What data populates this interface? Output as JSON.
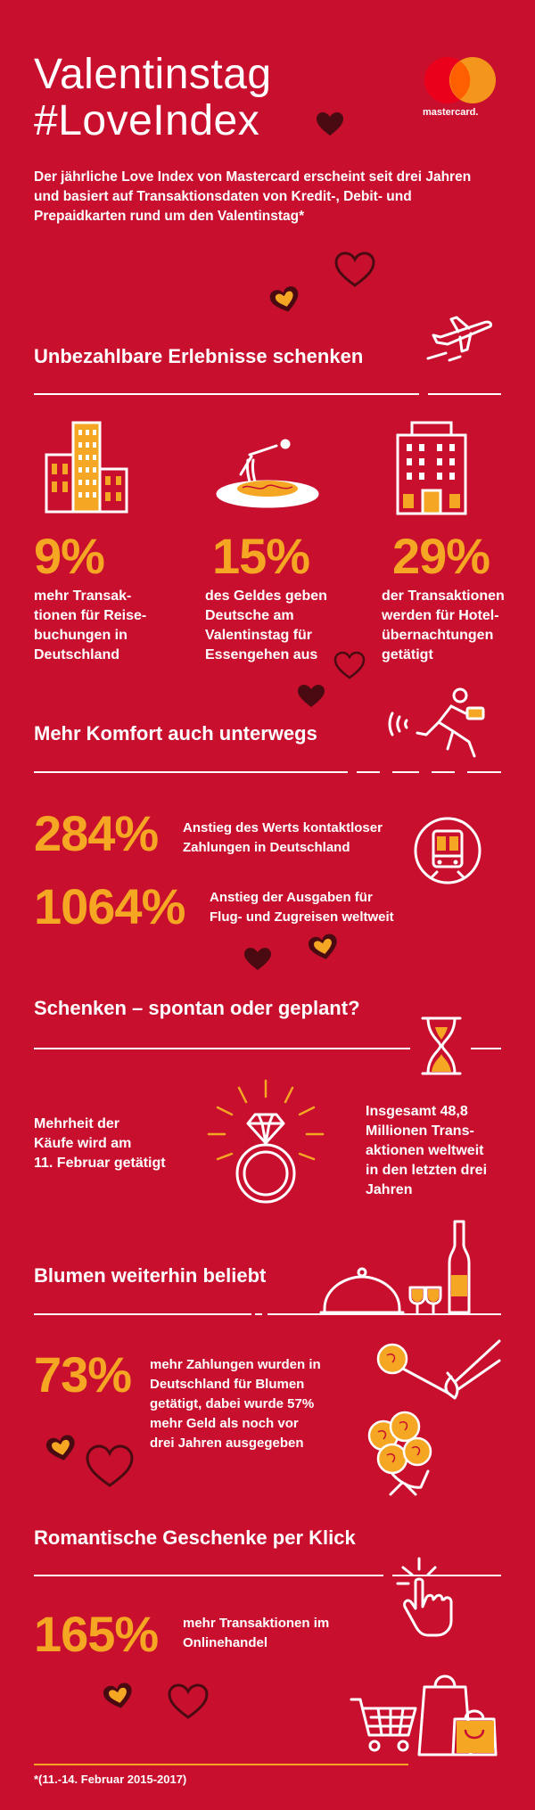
{
  "header": {
    "title_line1": "Valentinstag",
    "title_line2": "#LoveIndex",
    "brand": "mastercard.",
    "intro": "Der jährliche Love Index von Mastercard erscheint seit drei Jahren und basiert auf Transaktionsdaten von Kredit-, Debit- und Prepaidkarten rund um den Valentinstag*"
  },
  "section1": {
    "title": "Unbezahlbare Erlebnisse schenken",
    "stats": [
      {
        "value": "9%",
        "text": "mehr Transak-\ntionen für Reise-\nbuchungen in\nDeutschland"
      },
      {
        "value": "15%",
        "text": "des Geldes geben\nDeutsche am\nValentinstag für\nEssengehen aus"
      },
      {
        "value": "29%",
        "text": "der Transaktionen\nwerden für Hotel-\nübernachtungen\ngetätigt"
      }
    ]
  },
  "section2": {
    "title": "Mehr Komfort auch unterwegs",
    "stats": [
      {
        "value": "284%",
        "text": "Anstieg des Werts kontaktloser\nZahlungen in Deutschland"
      },
      {
        "value": "1064%",
        "text": "Anstieg der Ausgaben für\nFlug- und Zugreisen weltweit"
      }
    ]
  },
  "section3": {
    "title": "Schenken – spontan oder geplant?",
    "left": "Mehrheit der\nKäufe wird am\n11. Februar getätigt",
    "right": "Insgesamt 48,8\nMillionen Trans-\naktionen weltweit\nin den letzten drei\nJahren"
  },
  "section4": {
    "title": "Blumen weiterhin beliebt",
    "value": "73%",
    "text": "mehr Zahlungen wurden in\nDeutschland für Blumen\ngetätigt, dabei wurde 57%\nmehr Geld als noch vor\ndrei Jahren ausgegeben"
  },
  "section5": {
    "title": "Romantische Geschenke per Klick",
    "value": "165%",
    "text": "mehr Transaktionen im\nOnlinehandel"
  },
  "footnote": "*(11.-14. Februar 2015-2017)",
  "colors": {
    "background": "#c8102e",
    "accent": "#f5a623",
    "dark_heart": "#4a0a12",
    "mc_red": "#eb001b",
    "mc_yellow": "#f79e1b"
  }
}
